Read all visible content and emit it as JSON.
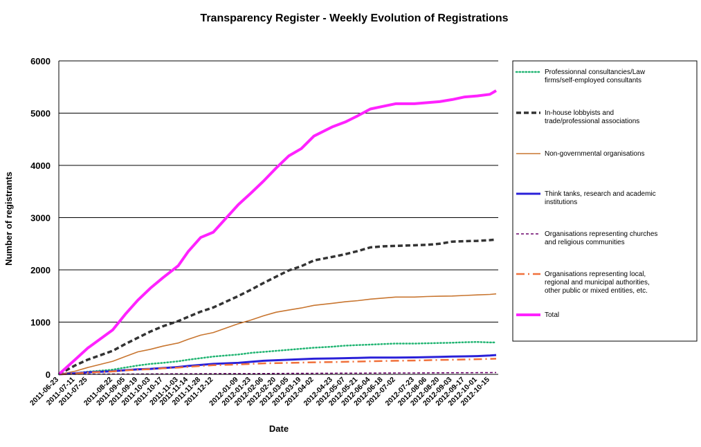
{
  "chart_data": {
    "type": "line",
    "title": "Transparency Register - Weekly Evolution of Registrations",
    "xlabel": "Date",
    "ylabel": "Number of registrants",
    "ylim": [
      0,
      6000
    ],
    "yticks": [
      "0",
      "1000",
      "2000",
      "3000",
      "4000",
      "5000",
      "6000"
    ],
    "grid": "horizontal",
    "legend_position": "right",
    "x_tick_labels": [
      "2011-06-23",
      "2011-07-11",
      "2011-07-25",
      "2011-08-22",
      "2011-09-05",
      "2011-09-19",
      "2011-10-03",
      "2011-10-17",
      "2011-11-03",
      "2011-11-14",
      "2011-11-28",
      "2011-12-12",
      "2012-01-09",
      "2012-01-23",
      "2012-02-06",
      "2012-02-20",
      "2012-03-05",
      "2012-03-19",
      "2012-04-02",
      "2012-04-23",
      "2012-05-07",
      "2012-05-21",
      "2012-06-04",
      "2012-06-18",
      "2012-07-02",
      "2012-07-23",
      "2012-08-06",
      "2012-08-20",
      "2012-09-03",
      "2012-09-17",
      "2012-10-01",
      "2012-10-15"
    ],
    "x": [
      "2011-06-23",
      "2011-07-11",
      "2011-07-25",
      "2011-08-22",
      "2011-09-05",
      "2011-09-19",
      "2011-10-03",
      "2011-10-17",
      "2011-11-03",
      "2011-11-14",
      "2011-11-28",
      "2011-12-12",
      "2012-01-09",
      "2012-01-23",
      "2012-02-06",
      "2012-02-20",
      "2012-03-05",
      "2012-03-19",
      "2012-04-02",
      "2012-04-23",
      "2012-05-07",
      "2012-05-21",
      "2012-06-04",
      "2012-06-18",
      "2012-07-02",
      "2012-07-23",
      "2012-08-06",
      "2012-08-20",
      "2012-09-03",
      "2012-09-17",
      "2012-10-01",
      "2012-10-15",
      "2012-10-22"
    ],
    "series": [
      {
        "name": "Professionnal consultancies/Law firms/self-employed consultants",
        "color": "#22b573",
        "dash": "dotted",
        "values": [
          0,
          20,
          50,
          90,
          130,
          170,
          200,
          220,
          250,
          280,
          310,
          340,
          380,
          410,
          430,
          450,
          470,
          490,
          510,
          530,
          550,
          560,
          570,
          580,
          590,
          590,
          595,
          600,
          605,
          615,
          620,
          610,
          610
        ]
      },
      {
        "name": "In-house lobbyists and trade/professional associations",
        "color": "#333333",
        "dash": "dashed",
        "values": [
          0,
          170,
          280,
          450,
          580,
          700,
          820,
          920,
          1020,
          1100,
          1200,
          1280,
          1500,
          1620,
          1750,
          1870,
          1990,
          2070,
          2180,
          2250,
          2300,
          2360,
          2430,
          2450,
          2460,
          2470,
          2480,
          2500,
          2540,
          2550,
          2555,
          2570,
          2580
        ]
      },
      {
        "name": "Non-governmental organisations",
        "color": "#c8752f",
        "dash": "solid",
        "values": [
          0,
          60,
          130,
          250,
          340,
          430,
          480,
          540,
          600,
          670,
          750,
          800,
          970,
          1040,
          1120,
          1190,
          1230,
          1270,
          1320,
          1360,
          1390,
          1410,
          1440,
          1460,
          1480,
          1480,
          1490,
          1495,
          1500,
          1510,
          1520,
          1530,
          1540
        ]
      },
      {
        "name": "Think tanks, research and academic institutions",
        "color": "#2a20d8",
        "dash": "solid",
        "values": [
          0,
          20,
          40,
          60,
          80,
          95,
          105,
          120,
          140,
          160,
          180,
          200,
          220,
          240,
          260,
          270,
          280,
          290,
          300,
          305,
          310,
          315,
          320,
          320,
          322,
          325,
          330,
          335,
          340,
          345,
          350,
          360,
          370
        ]
      },
      {
        "name": "Organisations representing churches and religious communities",
        "color": "#6a006a",
        "dash": "dashed-fine",
        "values": [
          0,
          2,
          4,
          5,
          6,
          7,
          8,
          9,
          10,
          11,
          12,
          13,
          14,
          15,
          16,
          17,
          18,
          19,
          20,
          21,
          22,
          23,
          24,
          25,
          26,
          27,
          28,
          29,
          30,
          31,
          32,
          33,
          34
        ]
      },
      {
        "name": "Organisations representing local, regional and municipal authorities, other public or mixed entities, etc.",
        "color": "#f0703a",
        "dash": "dash-dot",
        "values": [
          0,
          15,
          35,
          55,
          75,
          90,
          100,
          115,
          130,
          145,
          160,
          175,
          190,
          200,
          210,
          215,
          220,
          225,
          230,
          235,
          240,
          245,
          250,
          255,
          260,
          265,
          270,
          275,
          280,
          285,
          290,
          295,
          300
        ]
      },
      {
        "name": "Total",
        "color": "#ff22ff",
        "dash": "solid",
        "values": [
          0,
          280,
          500,
          850,
          1150,
          1420,
          1650,
          1850,
          2080,
          2350,
          2620,
          2720,
          3250,
          3470,
          3700,
          3950,
          4180,
          4320,
          4560,
          4740,
          4830,
          4950,
          5080,
          5130,
          5180,
          5180,
          5200,
          5220,
          5260,
          5310,
          5330,
          5360,
          5430
        ]
      }
    ]
  }
}
